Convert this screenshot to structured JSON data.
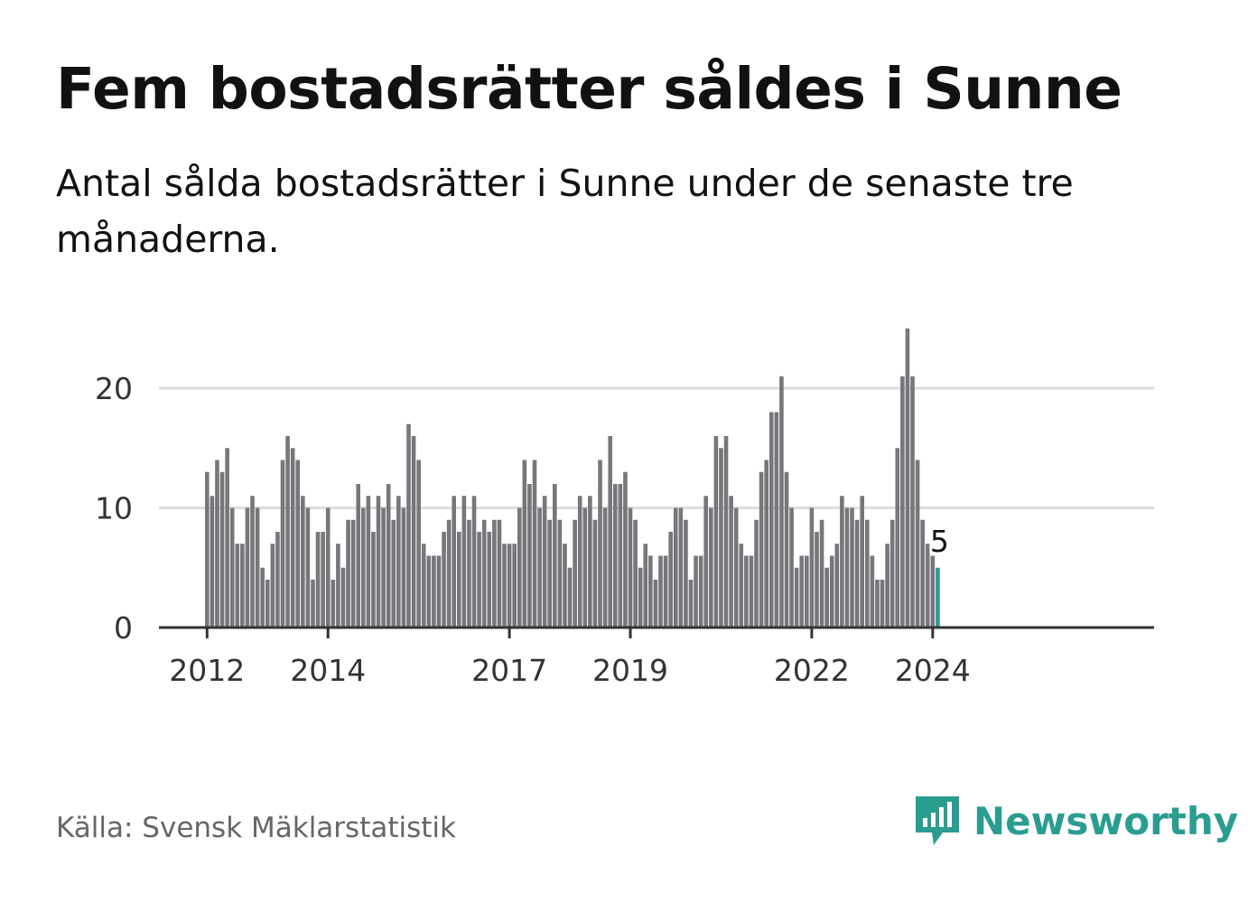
{
  "header": {
    "title": "Fem bostadsrätter såldes i Sunne",
    "subtitle": "Antal sålda bostadsrätter i Sunne under de senaste tre månaderna."
  },
  "footer": {
    "source": "Källa: Svensk Mäklarstatistik",
    "brand": "Newsworthy"
  },
  "colors": {
    "bar": "#77767b",
    "highlight": "#2a9d91",
    "grid": "#dddddd",
    "axis": "#333333",
    "brand": "#2a9d91"
  },
  "chart_data": {
    "type": "bar",
    "title": "Fem bostadsrätter såldes i Sunne",
    "xlabel": "",
    "ylabel": "",
    "ylim": [
      0,
      25
    ],
    "yticks": [
      0,
      10,
      20
    ],
    "xtick_labels": [
      "2012",
      "2014",
      "2017",
      "2019",
      "2022",
      "2024"
    ],
    "x_start": "2012-01",
    "highlight_label": "5",
    "values": [
      13,
      11,
      14,
      13,
      15,
      10,
      7,
      7,
      10,
      11,
      10,
      5,
      4,
      7,
      8,
      14,
      16,
      15,
      14,
      11,
      10,
      4,
      8,
      8,
      10,
      4,
      7,
      5,
      9,
      9,
      12,
      10,
      11,
      8,
      11,
      10,
      12,
      9,
      11,
      10,
      17,
      16,
      14,
      7,
      6,
      6,
      6,
      8,
      9,
      11,
      8,
      11,
      9,
      11,
      8,
      9,
      8,
      9,
      9,
      7,
      7,
      7,
      10,
      14,
      12,
      14,
      10,
      11,
      9,
      12,
      9,
      7,
      5,
      9,
      11,
      10,
      11,
      9,
      14,
      10,
      16,
      12,
      12,
      13,
      10,
      9,
      5,
      7,
      6,
      4,
      6,
      6,
      8,
      10,
      10,
      9,
      4,
      6,
      6,
      11,
      10,
      16,
      15,
      16,
      11,
      10,
      7,
      6,
      6,
      9,
      13,
      14,
      18,
      18,
      21,
      13,
      10,
      5,
      6,
      6,
      10,
      8,
      9,
      5,
      6,
      7,
      11,
      10,
      10,
      9,
      11,
      9,
      6,
      4,
      4,
      7,
      9,
      15,
      21,
      25,
      21,
      14,
      9,
      7,
      6,
      5
    ]
  }
}
